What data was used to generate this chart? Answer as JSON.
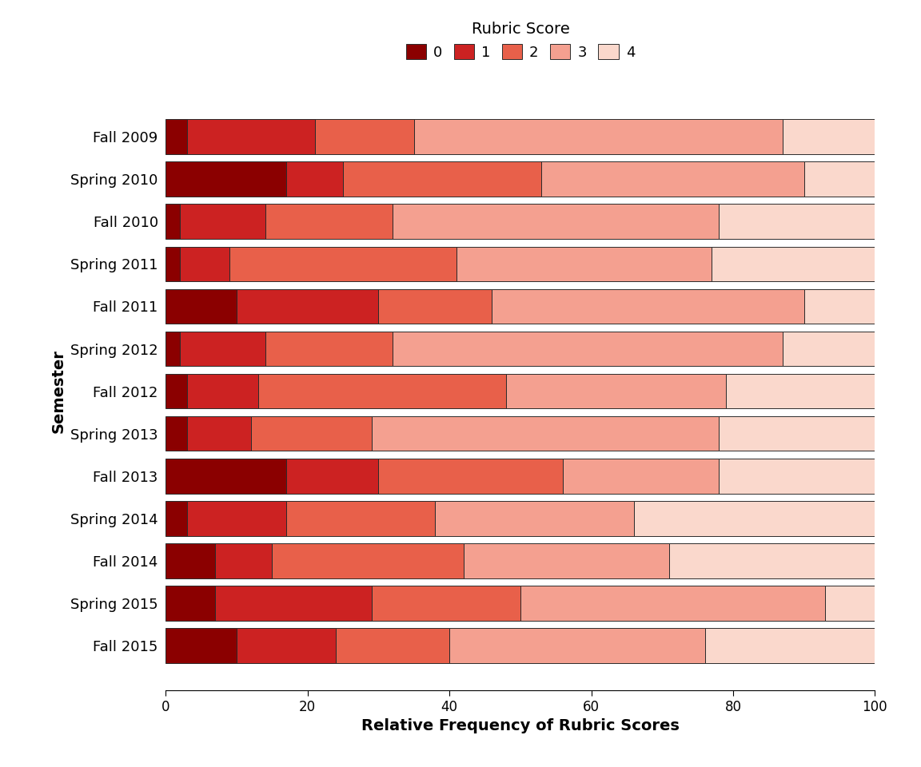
{
  "semesters": [
    "Fall 2009",
    "Spring 2010",
    "Fall 2010",
    "Spring 2011",
    "Fall 2011",
    "Spring 2012",
    "Fall 2012",
    "Spring 2013",
    "Fall 2013",
    "Spring 2014",
    "Fall 2014",
    "Spring 2015",
    "Fall 2015"
  ],
  "scores": {
    "0": [
      3,
      17,
      2,
      2,
      10,
      2,
      3,
      3,
      17,
      3,
      7,
      7,
      10
    ],
    "1": [
      18,
      8,
      12,
      7,
      20,
      12,
      10,
      9,
      13,
      14,
      8,
      22,
      14
    ],
    "2": [
      14,
      28,
      18,
      32,
      16,
      18,
      35,
      17,
      26,
      21,
      27,
      21,
      16
    ],
    "3": [
      52,
      37,
      46,
      36,
      44,
      55,
      31,
      49,
      22,
      28,
      29,
      43,
      36
    ],
    "4": [
      13,
      10,
      22,
      23,
      10,
      13,
      21,
      22,
      22,
      34,
      29,
      7,
      24
    ]
  },
  "colors": [
    "#8B0000",
    "#CC2222",
    "#E8604A",
    "#F4A090",
    "#FAD8CC"
  ],
  "score_labels": [
    "0",
    "1",
    "2",
    "3",
    "4"
  ],
  "legend_title": "Rubric Score",
  "xlabel": "Relative Frequency of Rubric Scores",
  "ylabel": "Semester",
  "xlim": [
    0,
    100
  ],
  "background_color": "#FFFFFF",
  "bar_edgecolor": "#2B2B2B",
  "bar_height": 0.82,
  "figsize": [
    11.52,
    9.6
  ],
  "dpi": 100
}
